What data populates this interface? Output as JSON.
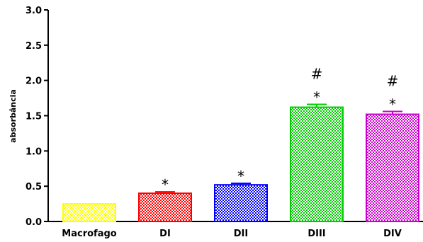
{
  "chart_data": {
    "type": "bar",
    "categories": [
      "Macrofago",
      "DI",
      "DII",
      "DIII",
      "DIV"
    ],
    "values": [
      0.25,
      0.4,
      0.52,
      1.62,
      1.52
    ],
    "errors": [
      0.0,
      0.02,
      0.02,
      0.04,
      0.04
    ],
    "ylabel": "absorbância",
    "ylim": [
      0,
      3.0
    ],
    "yticks": [
      "0.0",
      "0.5",
      "1.0",
      "1.5",
      "2.0",
      "2.5",
      "3.0"
    ],
    "colors": [
      "#ffff00",
      "#ff0000",
      "#0000ff",
      "#00cc00",
      "#cc00cc"
    ],
    "annotations": [
      {
        "category": "DI",
        "marks": [
          "*"
        ]
      },
      {
        "category": "DII",
        "marks": [
          "*"
        ]
      },
      {
        "category": "DIII",
        "marks": [
          "*",
          "#"
        ]
      },
      {
        "category": "DIV",
        "marks": [
          "*",
          "#"
        ]
      }
    ],
    "grid": false,
    "pattern": "checkered"
  }
}
